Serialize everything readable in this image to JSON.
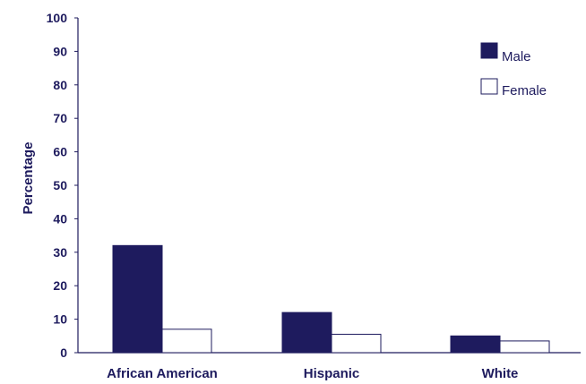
{
  "chart_data": {
    "type": "bar",
    "title": "",
    "xlabel": "",
    "ylabel": "Percentage",
    "ylim": [
      0,
      100
    ],
    "yticks": [
      0,
      10,
      20,
      30,
      40,
      50,
      60,
      70,
      80,
      90,
      100
    ],
    "categories": [
      "African American",
      "Hispanic",
      "White"
    ],
    "series": [
      {
        "name": "Male",
        "values": [
          32,
          12,
          5
        ],
        "color": "#1e1b5e",
        "fill": "solid"
      },
      {
        "name": "Female",
        "values": [
          7,
          5.5,
          3.5
        ],
        "color": "#ffffff",
        "fill": "outline"
      }
    ],
    "legend": {
      "position": "top-right"
    },
    "grid": false,
    "colors": {
      "ink": "#1e1b5e",
      "axis": "#1e1b5e"
    }
  }
}
